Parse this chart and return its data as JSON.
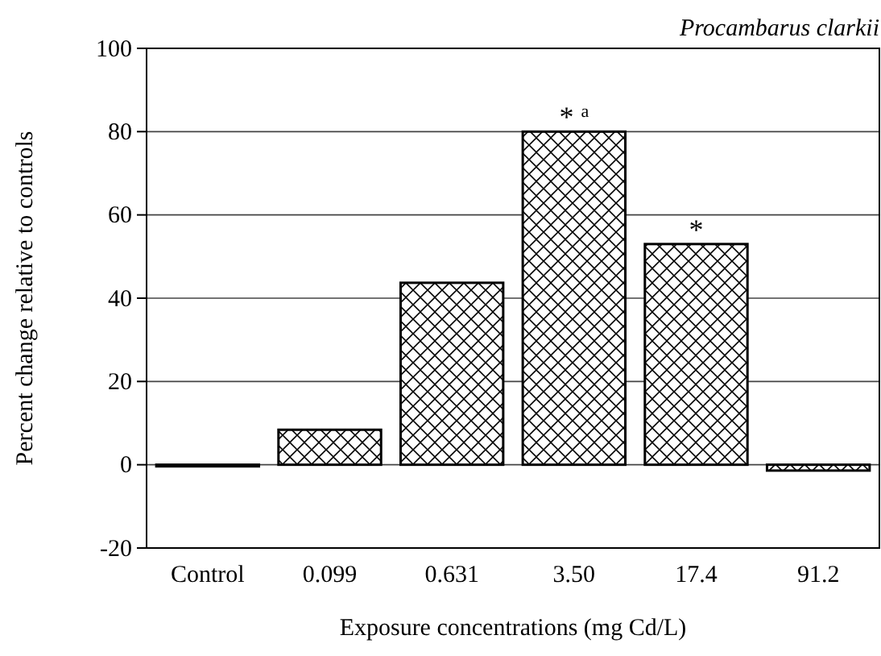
{
  "chart_data": {
    "type": "bar",
    "title": "Procambarus clarkii",
    "xlabel": "Exposure concentrations (mg Cd/L)",
    "ylabel": "Percent change relative to controls",
    "categories": [
      "Control",
      "0.099",
      "0.631",
      "3.50",
      "17.4",
      "91.2"
    ],
    "values": [
      0,
      8.4,
      43.7,
      80,
      53,
      -1.4
    ],
    "color": "#000000",
    "ylim": [
      -20,
      100
    ],
    "yticks": [
      -20,
      0,
      20,
      40,
      60,
      80,
      100
    ],
    "grid": "y",
    "annotations": [
      {
        "text": "* $^{a}$",
        "x": "3.50",
        "y": 80
      },
      {
        "text": "*",
        "x": "17.4",
        "y": 53
      }
    ]
  }
}
